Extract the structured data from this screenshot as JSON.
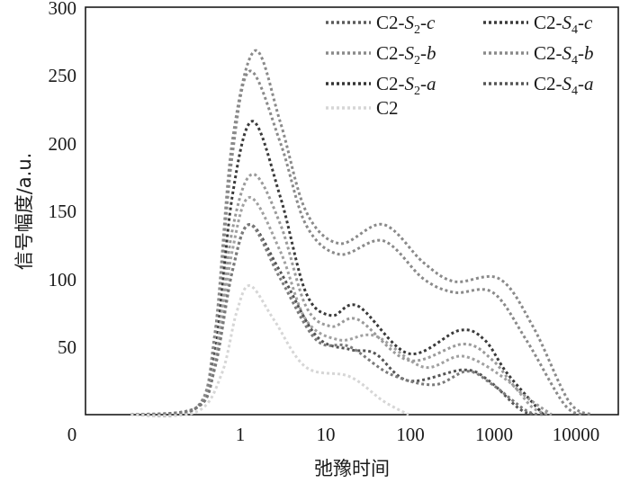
{
  "chart_data": {
    "type": "line",
    "xlabel": "弛豫时间",
    "ylabel": "信号幅度/a.u.",
    "x_scale": "log",
    "x_ticks": [
      "0",
      "1",
      "10",
      "100",
      "1000",
      "10000"
    ],
    "y_ticks": [
      "50",
      "100",
      "150",
      "200",
      "250",
      "300"
    ],
    "ylim": [
      0,
      300
    ],
    "grid": false,
    "legend_placement": "top-right",
    "legend_labels": [
      {
        "pre": "C2-",
        "s": "S",
        "sub": "2",
        "mid": "-",
        "it": "c"
      },
      {
        "pre": "C2-",
        "s": "S",
        "sub": "4",
        "mid": "-",
        "it": "c"
      },
      {
        "pre": "C2-",
        "s": "S",
        "sub": "2",
        "mid": "-",
        "it": "b"
      },
      {
        "pre": "C2-",
        "s": "S",
        "sub": "4",
        "mid": "-",
        "it": "b"
      },
      {
        "pre": "C2-",
        "s": "S",
        "sub": "2",
        "mid": "-",
        "it": "a"
      },
      {
        "pre": "C2-",
        "s": "S",
        "sub": "4",
        "mid": "-",
        "it": "a"
      },
      {
        "pre": "C2",
        "s": "",
        "sub": "",
        "mid": "",
        "it": ""
      }
    ],
    "series": [
      {
        "color": "#8a8a8a",
        "points": [
          [
            0.05,
            0
          ],
          [
            0.3,
            5
          ],
          [
            0.5,
            60
          ],
          [
            0.8,
            200
          ],
          [
            1.5,
            268
          ],
          [
            3,
            215
          ],
          [
            6,
            150
          ],
          [
            15,
            126
          ],
          [
            50,
            140
          ],
          [
            150,
            112
          ],
          [
            350,
            98
          ],
          [
            1200,
            100
          ],
          [
            3000,
            65
          ],
          [
            8000,
            10
          ],
          [
            15000,
            0
          ]
        ]
      },
      {
        "color": "#8a8a8a",
        "points": [
          [
            0.05,
            0
          ],
          [
            0.3,
            5
          ],
          [
            0.5,
            60
          ],
          [
            0.8,
            190
          ],
          [
            1.3,
            253
          ],
          [
            3,
            200
          ],
          [
            6,
            140
          ],
          [
            15,
            118
          ],
          [
            50,
            128
          ],
          [
            150,
            100
          ],
          [
            350,
            90
          ],
          [
            1000,
            90
          ],
          [
            2500,
            55
          ],
          [
            7000,
            8
          ],
          [
            12000,
            0
          ]
        ]
      },
      {
        "color": "#3a3a3a",
        "points": [
          [
            0.05,
            0
          ],
          [
            0.3,
            5
          ],
          [
            0.5,
            45
          ],
          [
            0.8,
            160
          ],
          [
            1.4,
            216
          ],
          [
            3,
            160
          ],
          [
            6,
            90
          ],
          [
            12,
            73
          ],
          [
            25,
            80
          ],
          [
            100,
            45
          ],
          [
            400,
            62
          ],
          [
            800,
            55
          ],
          [
            1500,
            30
          ],
          [
            4000,
            0
          ]
        ]
      },
      {
        "color": "#9a9a9a",
        "points": [
          [
            0.05,
            0
          ],
          [
            0.3,
            5
          ],
          [
            0.5,
            40
          ],
          [
            0.8,
            135
          ],
          [
            1.4,
            177
          ],
          [
            3,
            140
          ],
          [
            6,
            80
          ],
          [
            12,
            65
          ],
          [
            25,
            70
          ],
          [
            100,
            40
          ],
          [
            450,
            52
          ],
          [
            1000,
            40
          ],
          [
            2000,
            18
          ],
          [
            5000,
            0
          ]
        ]
      },
      {
        "color": "#a0a0a0",
        "points": [
          [
            0.05,
            0
          ],
          [
            0.3,
            5
          ],
          [
            0.5,
            40
          ],
          [
            0.8,
            120
          ],
          [
            1.3,
            160
          ],
          [
            3,
            120
          ],
          [
            6,
            70
          ],
          [
            15,
            55
          ],
          [
            40,
            58
          ],
          [
            150,
            35
          ],
          [
            450,
            43
          ],
          [
            1500,
            25
          ],
          [
            3000,
            5
          ],
          [
            5000,
            0
          ]
        ]
      },
      {
        "color": "#555555",
        "points": [
          [
            0.05,
            0
          ],
          [
            0.3,
            5
          ],
          [
            0.5,
            35
          ],
          [
            0.8,
            105
          ],
          [
            1.3,
            140
          ],
          [
            3,
            105
          ],
          [
            8,
            58
          ],
          [
            20,
            48
          ],
          [
            40,
            45
          ],
          [
            100,
            25
          ],
          [
            450,
            33
          ],
          [
            900,
            25
          ],
          [
            2000,
            5
          ],
          [
            3000,
            0
          ]
        ]
      },
      {
        "color": "#7a7a7a",
        "points": [
          [
            0.05,
            0
          ],
          [
            0.3,
            5
          ],
          [
            0.5,
            35
          ],
          [
            0.8,
            105
          ],
          [
            1.3,
            140
          ],
          [
            3,
            100
          ],
          [
            8,
            55
          ],
          [
            20,
            50
          ],
          [
            60,
            30
          ],
          [
            200,
            22
          ],
          [
            500,
            32
          ],
          [
            1000,
            22
          ],
          [
            2500,
            3
          ],
          [
            4000,
            0
          ]
        ]
      },
      {
        "color": "#d6d6d6",
        "points": [
          [
            0.05,
            0
          ],
          [
            0.3,
            2
          ],
          [
            0.6,
            30
          ],
          [
            0.9,
            75
          ],
          [
            1.3,
            95
          ],
          [
            2.5,
            70
          ],
          [
            6,
            35
          ],
          [
            20,
            28
          ],
          [
            50,
            10
          ],
          [
            100,
            0
          ]
        ]
      }
    ]
  }
}
